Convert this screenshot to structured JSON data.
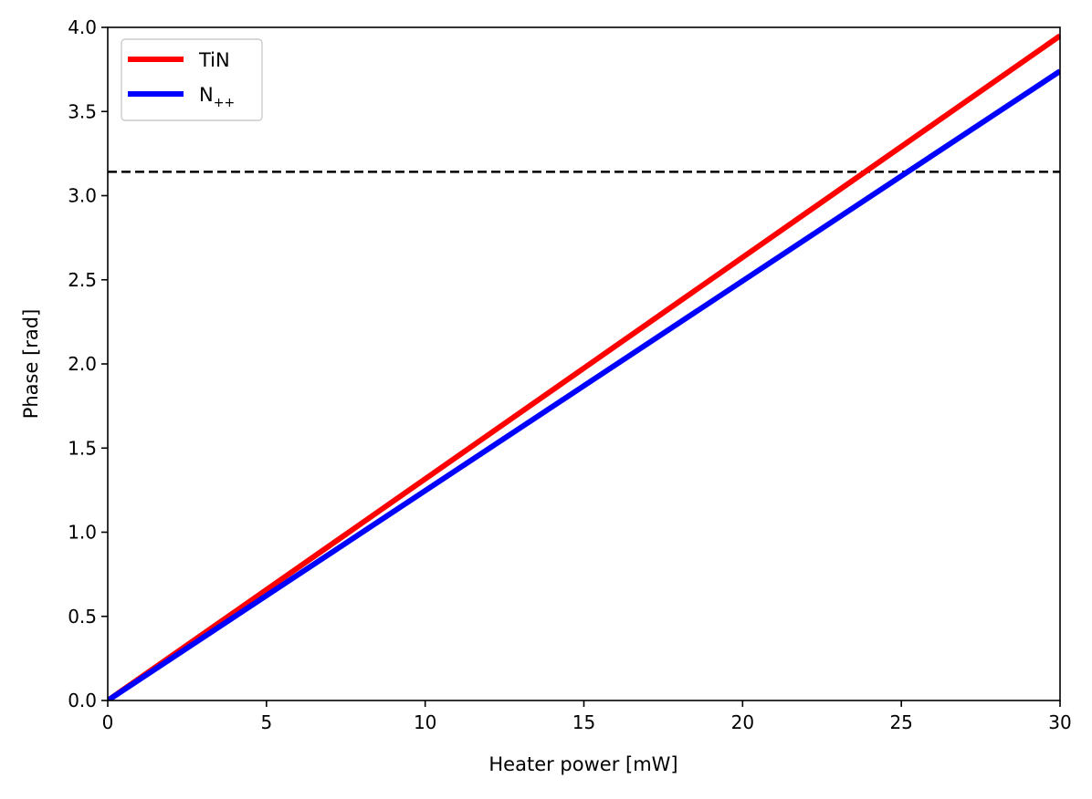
{
  "chart_data": {
    "type": "line",
    "title": "",
    "xlabel": "Heater power [mW]",
    "ylabel": "Phase [rad]",
    "xlim": [
      0,
      30
    ],
    "ylim": [
      0,
      4
    ],
    "xticks": [
      0,
      5,
      10,
      15,
      20,
      25,
      30
    ],
    "yticks": [
      0.0,
      0.5,
      1.0,
      1.5,
      2.0,
      2.5,
      3.0,
      3.5,
      4.0
    ],
    "xtick_labels": [
      "0",
      "5",
      "10",
      "15",
      "20",
      "25",
      "30"
    ],
    "ytick_labels": [
      "0.0",
      "0.5",
      "1.0",
      "1.5",
      "2.0",
      "2.5",
      "3.0",
      "3.5",
      "4.0"
    ],
    "grid": false,
    "legend": {
      "placement": "upper-left",
      "entries": [
        {
          "label": "TiN",
          "subscript": "",
          "color": "#ff0000"
        },
        {
          "label": "N",
          "subscript": "++",
          "color": "#0000ff"
        }
      ]
    },
    "series": [
      {
        "name": "TiN",
        "color": "#ff0000",
        "x": [
          0,
          30
        ],
        "y": [
          0,
          3.95
        ]
      },
      {
        "name": "N++",
        "color": "#0000ff",
        "x": [
          0,
          30
        ],
        "y": [
          0,
          3.74
        ]
      }
    ],
    "reference_line": {
      "y": 3.1416,
      "style": "dashed",
      "color": "#000000"
    }
  }
}
